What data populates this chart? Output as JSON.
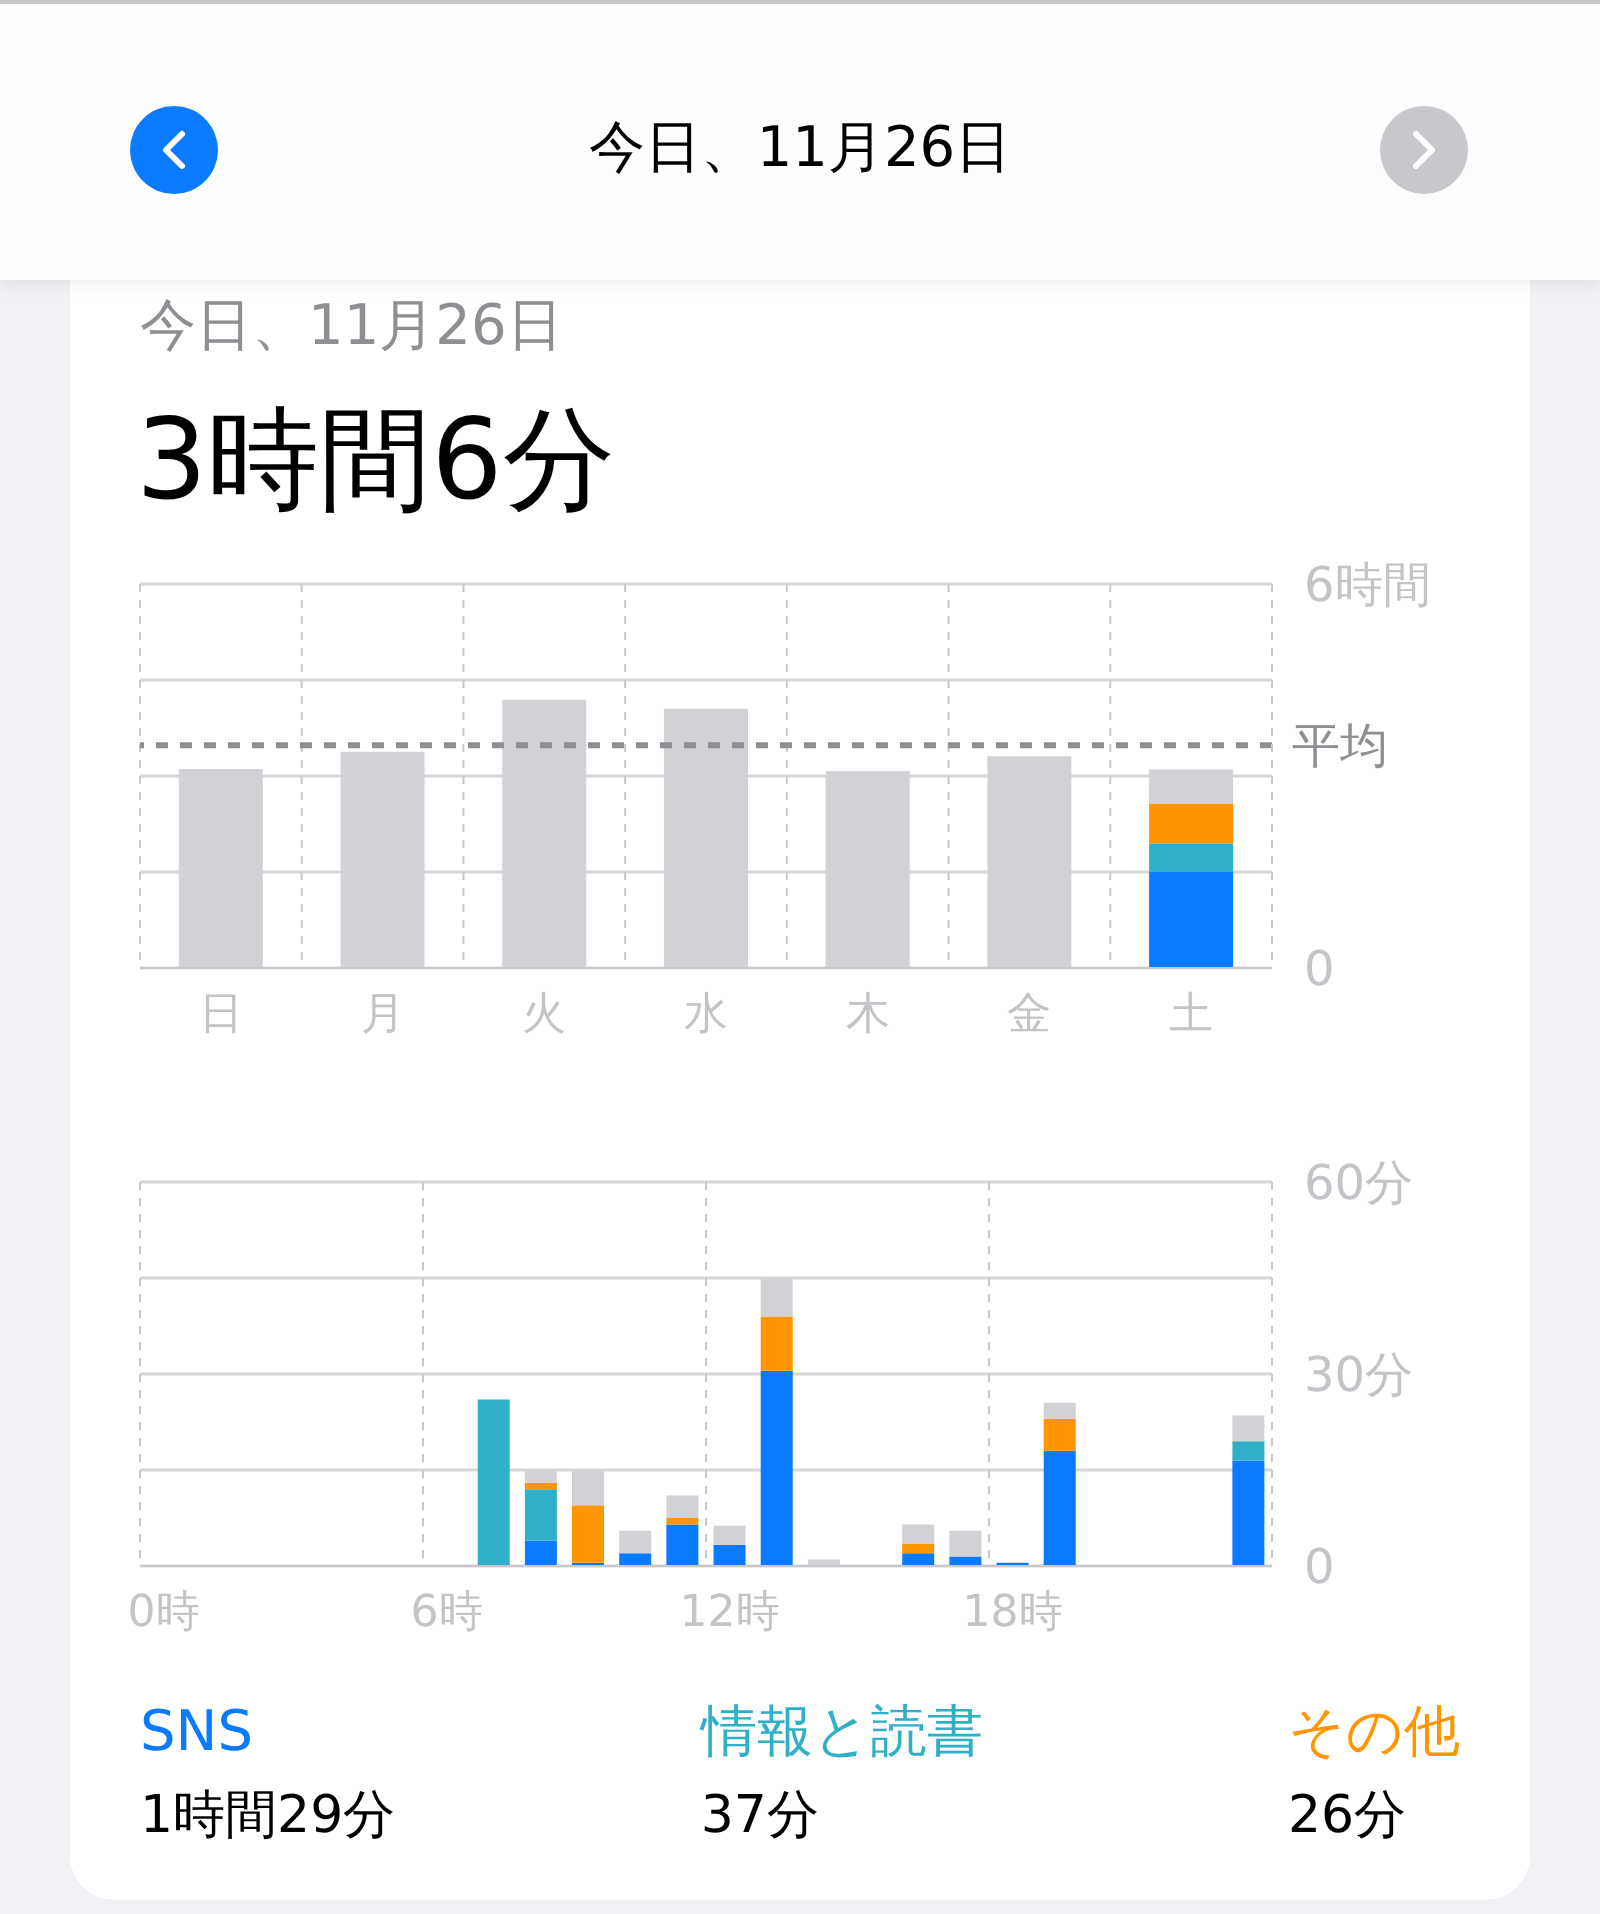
{
  "chart_data": [
    {
      "type": "bar",
      "title": "3時間6分",
      "subtitle": "今日、11月26日",
      "annotations": [
        "今日、11月26日"
      ],
      "categories": [
        "日",
        "月",
        "火",
        "水",
        "木",
        "金",
        "土"
      ],
      "stacked": true,
      "series": [
        {
          "color": "#0a7aff",
          "values": [
            null,
            null,
            null,
            null,
            null,
            null,
            1.5
          ]
        },
        {
          "color": "#30b0c7",
          "values": [
            null,
            null,
            null,
            null,
            null,
            null,
            0.44
          ]
        },
        {
          "color": "#ff9500",
          "values": [
            null,
            null,
            null,
            null,
            null,
            null,
            0.63
          ]
        },
        {
          "color": "#d1d1d6",
          "values": [
            3.11,
            3.38,
            4.19,
            4.05,
            3.08,
            3.31,
            0.53
          ]
        }
      ],
      "ylim": [
        0,
        6
      ],
      "yticks": [
        0,
        {
          "value": 1.5,
          "label": null
        },
        {
          "value": 3,
          "label": null
        },
        {
          "value": 4.5,
          "label": null
        },
        {
          "value": 6,
          "label": "6時間"
        }
      ],
      "ref_lines": [
        {
          "axis": "y",
          "value": 3.48,
          "label": "平均",
          "color": "#8e8e93",
          "line_style": "dashed"
        }
      ],
      "grid": true
    },
    {
      "type": "bar",
      "categories": [
        "0時",
        null,
        null,
        null,
        null,
        null,
        "6時",
        null,
        null,
        null,
        null,
        null,
        "12時",
        null,
        null,
        null,
        null,
        null,
        "18時",
        null,
        null,
        null,
        null,
        null
      ],
      "stacked": true,
      "series": [
        {
          "name": "SNS",
          "color": "#0a7aff",
          "values": [
            null,
            null,
            null,
            null,
            null,
            null,
            null,
            null,
            4,
            0.5,
            2,
            6.5,
            3.3,
            30.5,
            null,
            null,
            2,
            1.5,
            0.5,
            18,
            null,
            null,
            null,
            16.5
          ]
        },
        {
          "name": "情報と読書",
          "color": "#30b0c7",
          "values": [
            null,
            null,
            null,
            null,
            null,
            null,
            null,
            26,
            8,
            null,
            null,
            null,
            null,
            null,
            null,
            null,
            null,
            null,
            null,
            null,
            null,
            null,
            null,
            3
          ]
        },
        {
          "name": "その他",
          "color": "#ff9500",
          "values": [
            null,
            null,
            null,
            null,
            null,
            null,
            null,
            null,
            1,
            9,
            null,
            1,
            null,
            8.5,
            null,
            null,
            1.5,
            null,
            null,
            5,
            null,
            null,
            null,
            null
          ]
        },
        {
          "color": "#d1d1d6",
          "values": [
            null,
            null,
            null,
            null,
            null,
            null,
            null,
            null,
            2,
            5.5,
            3.5,
            3.5,
            3,
            6,
            1,
            null,
            3,
            4,
            null,
            2.5,
            null,
            null,
            null,
            4
          ]
        }
      ],
      "ylim": [
        0,
        60
      ],
      "yticks": [
        0,
        {
          "value": 15,
          "label": null
        },
        {
          "value": 30,
          "label": "30分"
        },
        {
          "value": 45,
          "label": null
        },
        {
          "value": 60,
          "label": "60分"
        }
      ],
      "grid": true,
      "legend": "bottom",
      "annotations": [
        "1時間29分",
        "37分",
        "26分"
      ]
    }
  ]
}
